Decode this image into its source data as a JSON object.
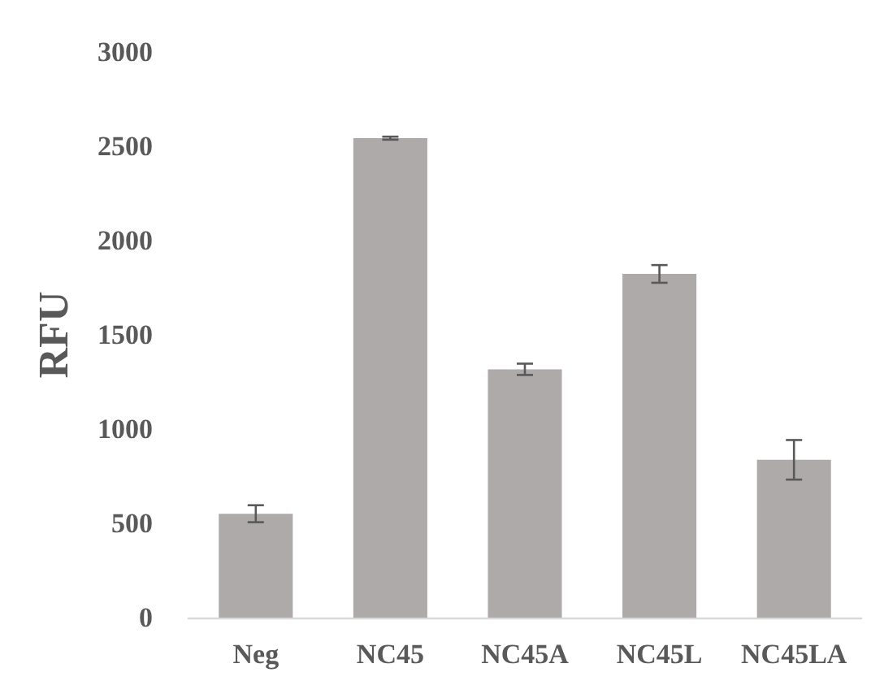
{
  "chart_data": {
    "type": "bar",
    "ylabel": "RFU",
    "categories": [
      "Neg",
      "NC45",
      "NC45A",
      "NC45L",
      "NC45LA"
    ],
    "values": [
      551,
      2543,
      1317,
      1823,
      837
    ],
    "errors": [
      45,
      8,
      30,
      47,
      105
    ],
    "color": "#aeaaaa",
    "ylim": [
      0,
      3000
    ],
    "yticks": [
      0,
      500,
      1000,
      1500,
      2000,
      2500,
      3000
    ],
    "grid": false
  }
}
